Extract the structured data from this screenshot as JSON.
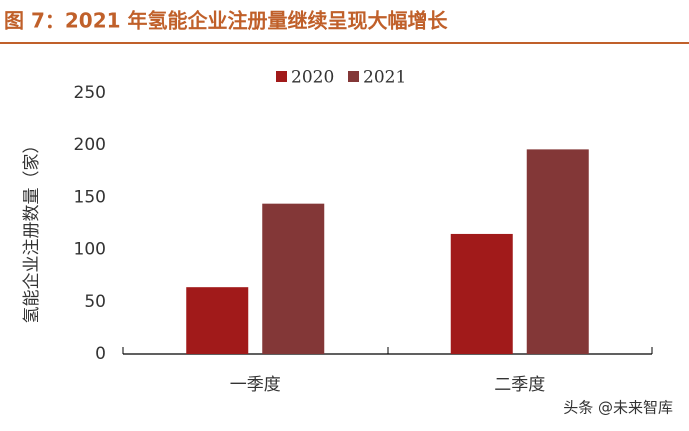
{
  "chart_data": {
    "type": "bar",
    "title": "图 7：2021 年氢能企业注册量继续呈现大幅增长",
    "y_label": "氢能企业注册数量（家）",
    "categories": [
      "一季度",
      "二季度"
    ],
    "series": [
      {
        "name": "2020",
        "color": "#a11a1a",
        "values": [
          64,
          115
        ]
      },
      {
        "name": "2021",
        "color": "#833737",
        "values": [
          144,
          196
        ]
      }
    ],
    "ylim": [
      0,
      250
    ],
    "yticks": [
      0,
      50,
      100,
      150,
      200,
      250
    ],
    "grid": false,
    "legend": "top",
    "watermark": "头条 @未来智库"
  }
}
